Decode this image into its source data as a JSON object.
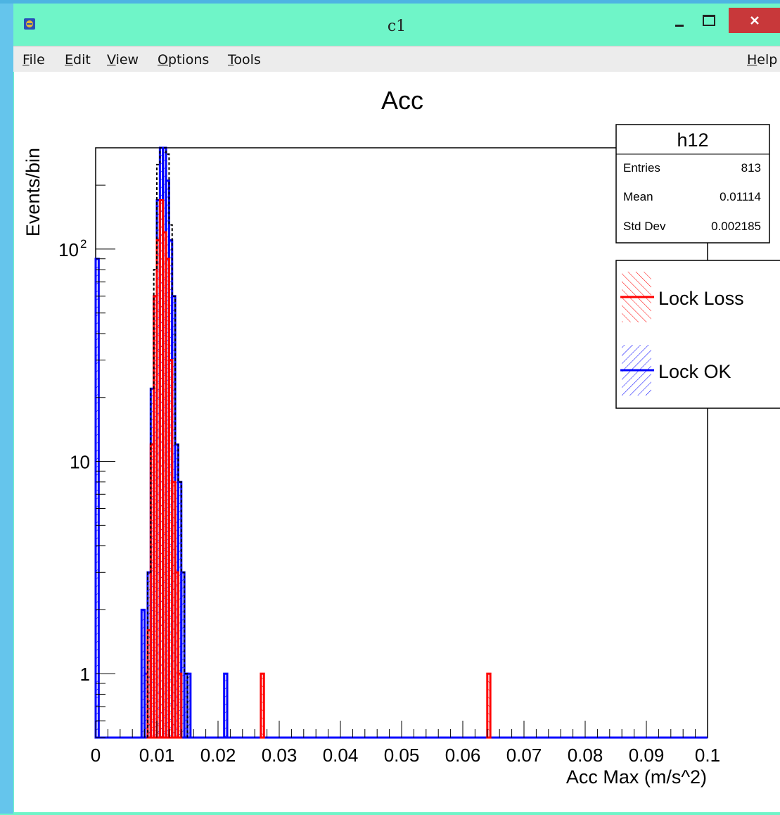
{
  "window": {
    "title": "c1"
  },
  "menu": {
    "file": "File",
    "edit": "Edit",
    "view": "View",
    "options": "Options",
    "tools": "Tools",
    "help": "Help"
  },
  "colors": {
    "loss": "#ff0000",
    "ok": "#0000ff",
    "total": "#000000",
    "titlebar": "#6ff5c8",
    "close": "#c8383a"
  },
  "stats": {
    "name": "h12",
    "entries_label": "Entries",
    "entries_value": "813",
    "mean_label": "Mean",
    "mean_value": "0.01114",
    "std_label": "Std Dev",
    "std_value": "0.002185"
  },
  "chart_data": {
    "type": "bar",
    "title": "Acc",
    "xlabel": "Acc Max (m/s^2)",
    "ylabel": "Events/bin",
    "x_scale": "linear",
    "y_scale": "log",
    "xlim": [
      0,
      0.1
    ],
    "ylim": [
      0.5,
      300
    ],
    "x_ticks": [
      "0",
      "0.01",
      "0.02",
      "0.03",
      "0.04",
      "0.05",
      "0.06",
      "0.07",
      "0.08",
      "0.09",
      "0.1"
    ],
    "y_ticks": [
      {
        "value": 1,
        "label": "1"
      },
      {
        "value": 10,
        "label": "10"
      },
      {
        "value": 100,
        "label": "10",
        "sup": "2"
      }
    ],
    "bin_width": 0.0005,
    "legend": {
      "position": "right",
      "entries": [
        {
          "name": "Lock Loss",
          "color": "#ff0000",
          "hatch": "\\"
        },
        {
          "name": "Lock OK",
          "color": "#0000ff",
          "hatch": "/"
        }
      ]
    },
    "series": [
      {
        "name": "Lock OK",
        "color": "#0000ff",
        "fill": "crosshatch",
        "bins": [
          [
            0.0,
            90
          ],
          [
            0.0075,
            2
          ],
          [
            0.008,
            1
          ],
          [
            0.0085,
            3
          ],
          [
            0.009,
            22
          ],
          [
            0.0095,
            60
          ],
          [
            0.01,
            170
          ],
          [
            0.0105,
            300
          ],
          [
            0.011,
            300
          ],
          [
            0.0115,
            210
          ],
          [
            0.012,
            110
          ],
          [
            0.0125,
            60
          ],
          [
            0.013,
            12
          ],
          [
            0.0135,
            8
          ],
          [
            0.014,
            3
          ],
          [
            0.0145,
            1
          ],
          [
            0.015,
            1
          ],
          [
            0.021,
            1
          ]
        ]
      },
      {
        "name": "Lock Loss",
        "color": "#ff0000",
        "fill": "crosshatch",
        "bins": [
          [
            0.0085,
            1.6
          ],
          [
            0.009,
            12
          ],
          [
            0.0095,
            60
          ],
          [
            0.01,
            110
          ],
          [
            0.0105,
            170
          ],
          [
            0.011,
            120
          ],
          [
            0.0115,
            90
          ],
          [
            0.012,
            30
          ],
          [
            0.0125,
            8
          ],
          [
            0.013,
            3
          ],
          [
            0.0135,
            1
          ],
          [
            0.027,
            1
          ],
          [
            0.064,
            1
          ]
        ]
      },
      {
        "name": "total",
        "color": "#000000",
        "style": "dashed",
        "bins": [
          [
            0.0085,
            3
          ],
          [
            0.009,
            22
          ],
          [
            0.0095,
            80
          ],
          [
            0.01,
            250
          ],
          [
            0.0105,
            300
          ],
          [
            0.011,
            300
          ],
          [
            0.0115,
            280
          ],
          [
            0.012,
            130
          ],
          [
            0.0125,
            60
          ],
          [
            0.013,
            12
          ],
          [
            0.0135,
            8
          ],
          [
            0.014,
            3
          ],
          [
            0.0145,
            1
          ]
        ]
      }
    ]
  }
}
